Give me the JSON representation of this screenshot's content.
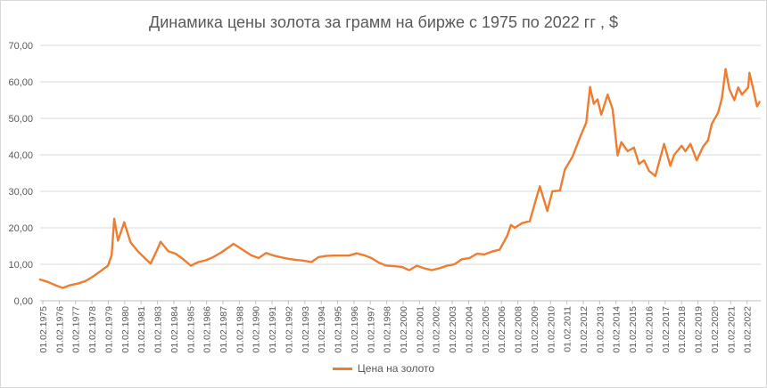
{
  "chart_data": {
    "type": "line",
    "title": "Динамика цены золота за грамм на бирже с 1975 по 2022 гг , $",
    "xlabel": "",
    "ylabel": "",
    "ylim": [
      0,
      70
    ],
    "y_ticks": [
      "0,00",
      "10,00",
      "20,00",
      "30,00",
      "40,00",
      "50,00",
      "60,00",
      "70,00"
    ],
    "x_ticks": [
      "01.02.1975",
      "01.02.1976",
      "01.02.1977",
      "01.02.1978",
      "01.02.1979",
      "01.02.1980",
      "01.02.1981",
      "01.02.1983",
      "01.02.1984",
      "01.02.1985",
      "01.02.1986",
      "01.02.1987",
      "01.02.1988",
      "01.02.1990",
      "01.02.1991",
      "01.02.1992",
      "01.02.1993",
      "01.02.1994",
      "01.02.1995",
      "01.02.1996",
      "01.02.1997",
      "01.02.1998",
      "01.02.2000",
      "01.02.2001",
      "01.02.2002",
      "01.02.2003",
      "01.02.2004",
      "01.02.2005",
      "01.02.2006",
      "01.02.2008",
      "01.02.2009",
      "01.02.2010",
      "01.02.2011",
      "01.02.2012",
      "01.02.2013",
      "01.02.2014",
      "01.02.2015",
      "01.02.2016",
      "01.02.2017",
      "01.02.2018",
      "01.02.2019",
      "01.02.2020",
      "01.02.2021",
      "01.02.2022"
    ],
    "grid": true,
    "legend_position": "bottom",
    "series": [
      {
        "name": "Цена на золото",
        "color": "#ED7D31",
        "points": [
          [
            "1975-02",
            5.8
          ],
          [
            "1975-08",
            5.2
          ],
          [
            "1976-02",
            4.3
          ],
          [
            "1976-08",
            3.5
          ],
          [
            "1977-02",
            4.3
          ],
          [
            "1977-08",
            4.7
          ],
          [
            "1978-02",
            5.4
          ],
          [
            "1978-08",
            6.6
          ],
          [
            "1979-02",
            8.1
          ],
          [
            "1979-08",
            9.6
          ],
          [
            "1979-11",
            12.5
          ],
          [
            "1980-01",
            22.5
          ],
          [
            "1980-04",
            16.5
          ],
          [
            "1980-09",
            21.5
          ],
          [
            "1981-02",
            16.0
          ],
          [
            "1981-08",
            13.5
          ],
          [
            "1982-02",
            11.5
          ],
          [
            "1982-06",
            10.2
          ],
          [
            "1982-11",
            13.8
          ],
          [
            "1983-02",
            16.2
          ],
          [
            "1983-08",
            13.6
          ],
          [
            "1984-02",
            12.9
          ],
          [
            "1984-08",
            11.4
          ],
          [
            "1985-02",
            9.6
          ],
          [
            "1985-08",
            10.6
          ],
          [
            "1986-02",
            11.1
          ],
          [
            "1986-08",
            12.0
          ],
          [
            "1987-02",
            13.2
          ],
          [
            "1987-08",
            14.6
          ],
          [
            "1987-12",
            15.6
          ],
          [
            "1988-06",
            14.3
          ],
          [
            "1989-02",
            12.5
          ],
          [
            "1989-08",
            11.7
          ],
          [
            "1990-02",
            13.1
          ],
          [
            "1990-08",
            12.4
          ],
          [
            "1991-02",
            11.9
          ],
          [
            "1991-08",
            11.5
          ],
          [
            "1992-02",
            11.2
          ],
          [
            "1992-08",
            11.0
          ],
          [
            "1993-02",
            10.6
          ],
          [
            "1993-08",
            12.0
          ],
          [
            "1994-02",
            12.3
          ],
          [
            "1994-08",
            12.4
          ],
          [
            "1995-02",
            12.4
          ],
          [
            "1995-08",
            12.4
          ],
          [
            "1996-02",
            13.0
          ],
          [
            "1996-08",
            12.5
          ],
          [
            "1997-02",
            11.7
          ],
          [
            "1997-08",
            10.4
          ],
          [
            "1998-02",
            9.6
          ],
          [
            "1998-08",
            9.5
          ],
          [
            "1999-02",
            9.3
          ],
          [
            "1999-08",
            8.4
          ],
          [
            "2000-02",
            9.6
          ],
          [
            "2000-08",
            8.9
          ],
          [
            "2001-02",
            8.4
          ],
          [
            "2001-08",
            8.9
          ],
          [
            "2002-02",
            9.6
          ],
          [
            "2002-08",
            10.0
          ],
          [
            "2003-02",
            11.4
          ],
          [
            "2003-08",
            11.7
          ],
          [
            "2004-02",
            12.9
          ],
          [
            "2004-08",
            12.7
          ],
          [
            "2005-02",
            13.5
          ],
          [
            "2005-08",
            14.0
          ],
          [
            "2006-02",
            17.8
          ],
          [
            "2006-05",
            20.8
          ],
          [
            "2006-08",
            20.0
          ],
          [
            "2007-02",
            21.3
          ],
          [
            "2007-08",
            21.8
          ],
          [
            "2008-02",
            29.0
          ],
          [
            "2008-04",
            31.4
          ],
          [
            "2008-10",
            24.6
          ],
          [
            "2009-02",
            30.0
          ],
          [
            "2009-08",
            30.2
          ],
          [
            "2009-12",
            36.0
          ],
          [
            "2010-06",
            39.5
          ],
          [
            "2010-12",
            44.8
          ],
          [
            "2011-05",
            48.8
          ],
          [
            "2011-08",
            58.6
          ],
          [
            "2011-11",
            54.0
          ],
          [
            "2012-02",
            55.2
          ],
          [
            "2012-05",
            51.0
          ],
          [
            "2012-10",
            56.5
          ],
          [
            "2013-02",
            52.5
          ],
          [
            "2013-06",
            39.8
          ],
          [
            "2013-09",
            43.5
          ],
          [
            "2014-02",
            41.0
          ],
          [
            "2014-07",
            42.0
          ],
          [
            "2014-11",
            37.5
          ],
          [
            "2015-03",
            38.5
          ],
          [
            "2015-07",
            35.6
          ],
          [
            "2015-12",
            34.2
          ],
          [
            "2016-07",
            43.0
          ],
          [
            "2016-12",
            37.0
          ],
          [
            "2017-03",
            40.0
          ],
          [
            "2017-09",
            42.5
          ],
          [
            "2017-12",
            41.0
          ],
          [
            "2018-04",
            43.0
          ],
          [
            "2018-09",
            38.5
          ],
          [
            "2019-02",
            42.2
          ],
          [
            "2019-06",
            44.0
          ],
          [
            "2019-09",
            48.5
          ],
          [
            "2020-02",
            51.5
          ],
          [
            "2020-05",
            55.5
          ],
          [
            "2020-08",
            63.5
          ],
          [
            "2020-11",
            58.0
          ],
          [
            "2021-03",
            55.0
          ],
          [
            "2021-06",
            58.5
          ],
          [
            "2021-09",
            56.5
          ],
          [
            "2022-02",
            58.5
          ],
          [
            "2022-03",
            62.5
          ],
          [
            "2022-06",
            58.0
          ],
          [
            "2022-09",
            53.3
          ],
          [
            "2022-11",
            54.5
          ]
        ]
      }
    ]
  }
}
